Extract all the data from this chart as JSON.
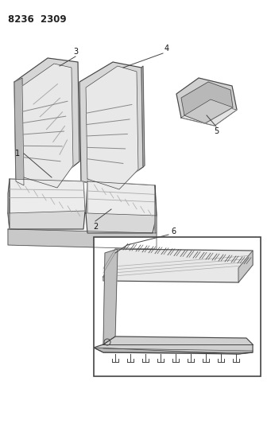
{
  "title": "8236 2309",
  "background_color": "#ffffff",
  "line_color": "#444444",
  "figsize": [
    3.41,
    5.33
  ],
  "dpi": 100,
  "seat_back_fill": "#d4d4d4",
  "seat_back_inner_fill": "#b0b0b0",
  "seat_cushion_fill": "#d0d0d0",
  "seat_cushion_top_fill": "#e0e0e0",
  "armrest_fill": "#c8c8c8",
  "detail_bg": "#ffffff"
}
